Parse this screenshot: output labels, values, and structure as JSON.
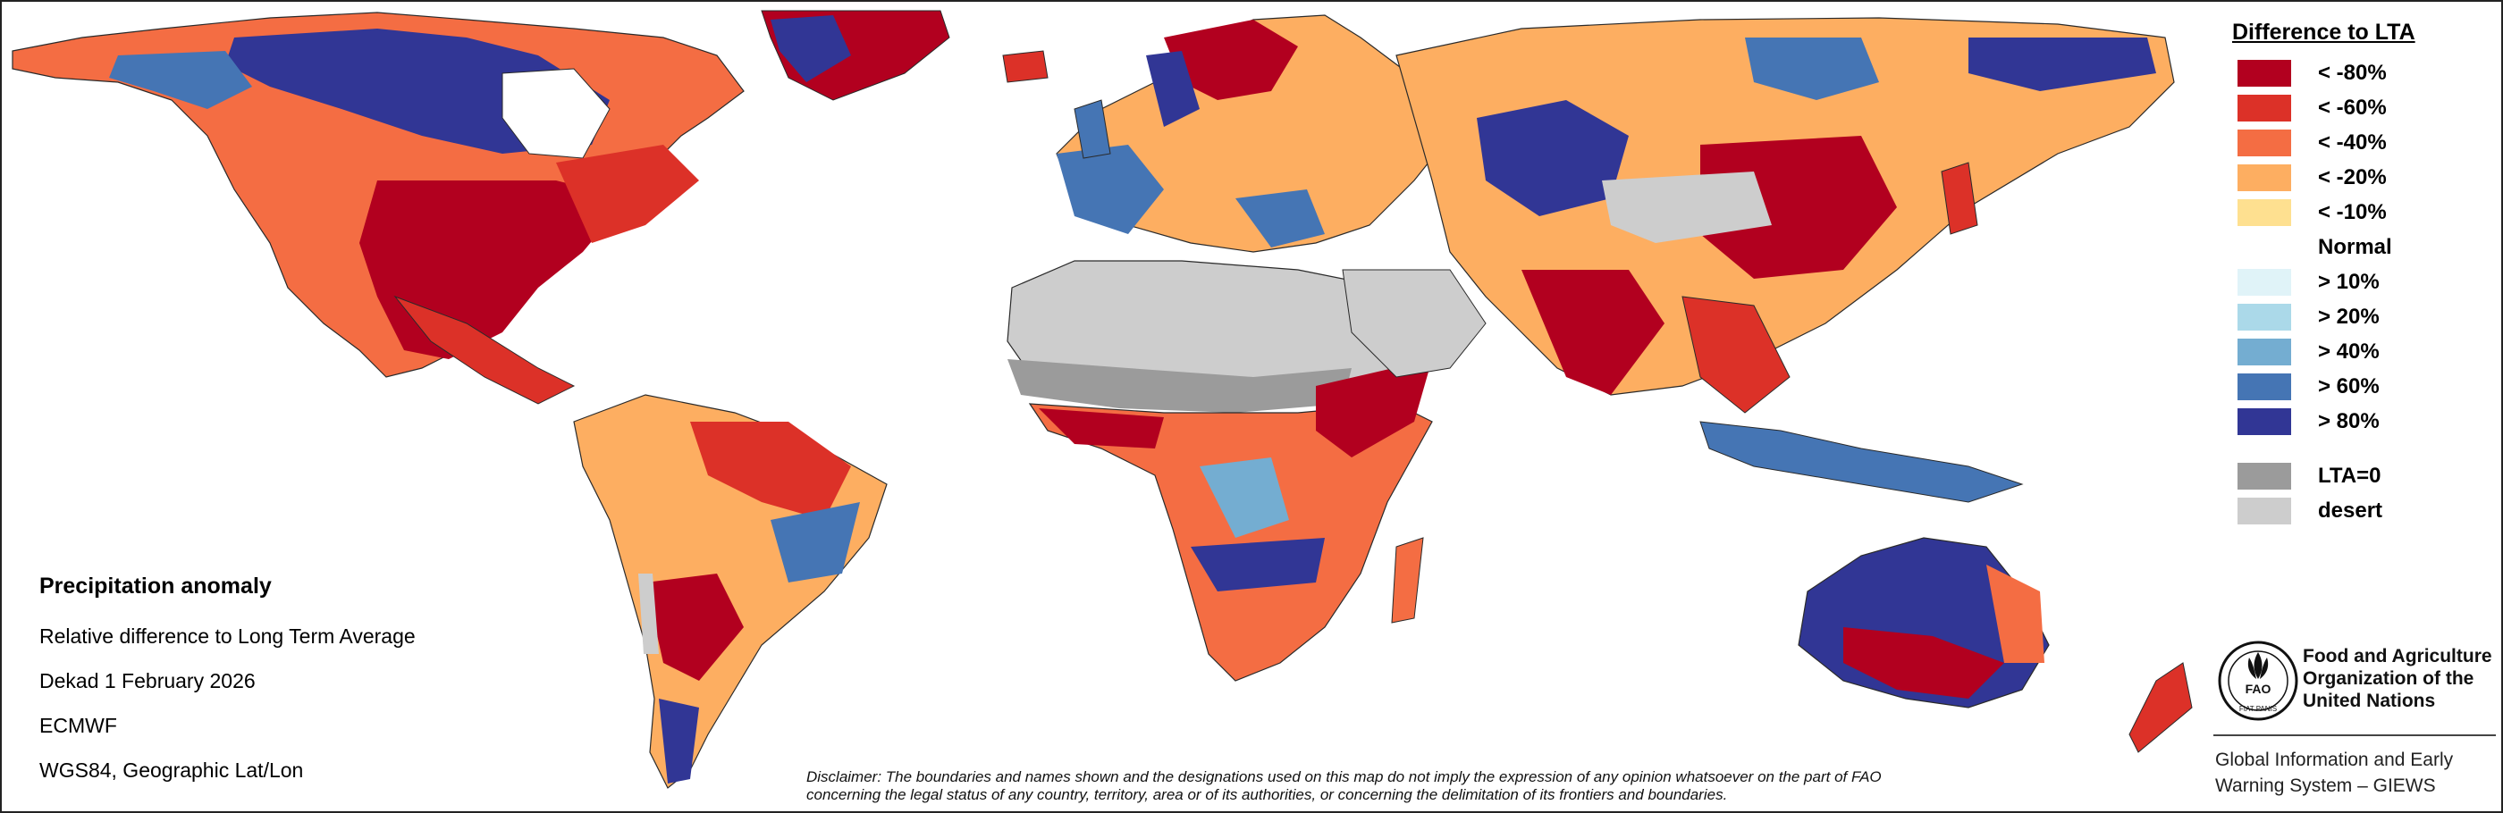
{
  "legend": {
    "title": "Difference to LTA",
    "items": [
      {
        "label": "< -80%",
        "color": "#b2001f",
        "swatch": true
      },
      {
        "label": "< -60%",
        "color": "#dc3128",
        "swatch": true
      },
      {
        "label": "< -40%",
        "color": "#f46d43",
        "swatch": true
      },
      {
        "label": "< -20%",
        "color": "#fdae61",
        "swatch": true
      },
      {
        "label": "< -10%",
        "color": "#fee090",
        "swatch": true
      },
      {
        "label": "Normal",
        "color": "#ffffff",
        "swatch": false
      },
      {
        "label": "> 10%",
        "color": "#e0f3f8",
        "swatch": true
      },
      {
        "label": "> 20%",
        "color": "#abd9e9",
        "swatch": true
      },
      {
        "label": "> 40%",
        "color": "#74add1",
        "swatch": true
      },
      {
        "label": "> 60%",
        "color": "#4575b4",
        "swatch": true
      },
      {
        "label": "> 80%",
        "color": "#313695",
        "swatch": true
      }
    ],
    "extra": [
      {
        "label": "LTA=0",
        "color": "#9b9b9b"
      },
      {
        "label": "desert",
        "color": "#cdcdcd"
      }
    ]
  },
  "info": {
    "title": "Precipitation anomaly",
    "lines": [
      "Relative difference to Long Term Average",
      "Dekad 1 February 2026",
      "ECMWF",
      "WGS84, Geographic Lat/Lon"
    ]
  },
  "disclaimer": {
    "line1": "Disclaimer: The boundaries and names shown and the designations used on this map do not imply the expression of any opinion whatsoever on the part of FAO",
    "line2": "concerning the legal status of any country, territory, area or of its authorities, or concerning the delimitation of its frontiers and boundaries."
  },
  "fao": {
    "emblem_text": "FIAT PANIS",
    "emblem_letters": "FAO",
    "name_lines": [
      "Food and Agriculture",
      "Organization of the",
      "United Nations"
    ],
    "giews_lines": [
      "Global Information and Early",
      "Warning System – GIEWS"
    ]
  },
  "colors": {
    "ocean": "#ffffff",
    "border": "#2a2a2a",
    "strong_dry": "#b2001f",
    "dry": "#dc3128",
    "mid_dry": "#f46d43",
    "light_dry": "#fdae61",
    "very_light_dry": "#fee090",
    "light_wet": "#abd9e9",
    "mid_wet": "#74add1",
    "wet": "#4575b4",
    "strong_wet": "#313695",
    "lta_zero": "#9b9b9b",
    "desert": "#cdcdcd"
  }
}
